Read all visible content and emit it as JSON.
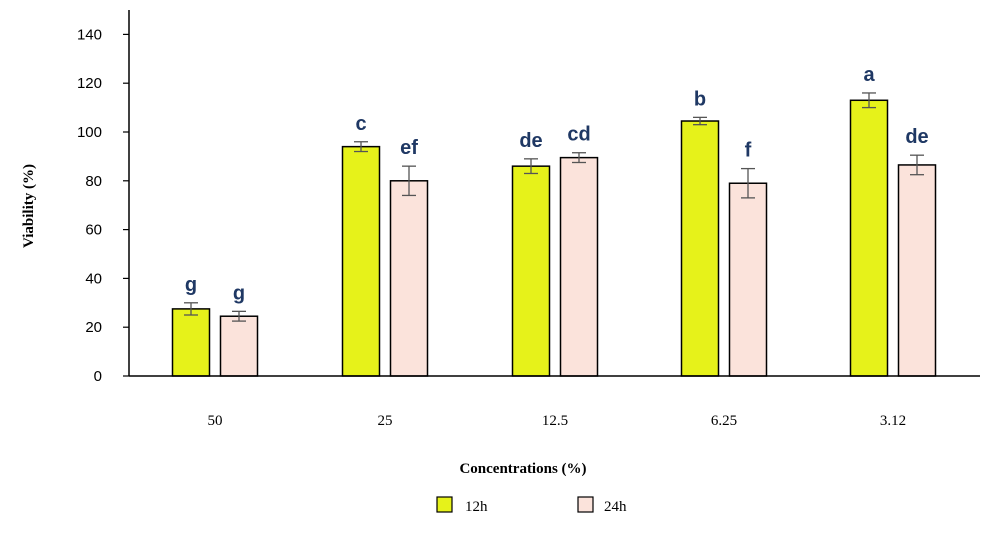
{
  "chart_data": {
    "type": "bar",
    "xlabel": "Concentrations (%)",
    "ylabel": "Viability (%)",
    "ylim": [
      0,
      150
    ],
    "yticks": [
      0,
      20,
      40,
      60,
      80,
      100,
      120,
      140
    ],
    "categories": [
      "50",
      "25",
      "12.5",
      "6.25",
      "3.12"
    ],
    "series": [
      {
        "name": "12h",
        "color": "#e6f21a",
        "values": [
          27.5,
          94,
          86,
          104.5,
          113
        ],
        "errors": [
          2.5,
          2,
          3,
          1.5,
          3
        ],
        "letters": [
          "g",
          "c",
          "de",
          "b",
          "a"
        ]
      },
      {
        "name": "24h",
        "color": "#fbe3db",
        "values": [
          24.5,
          80,
          89.5,
          79,
          86.5
        ],
        "errors": [
          2,
          6,
          2,
          6,
          4
        ],
        "letters": [
          "g",
          "ef",
          "cd",
          "f",
          "de"
        ]
      }
    ],
    "grid": false,
    "legend": "bottom"
  }
}
